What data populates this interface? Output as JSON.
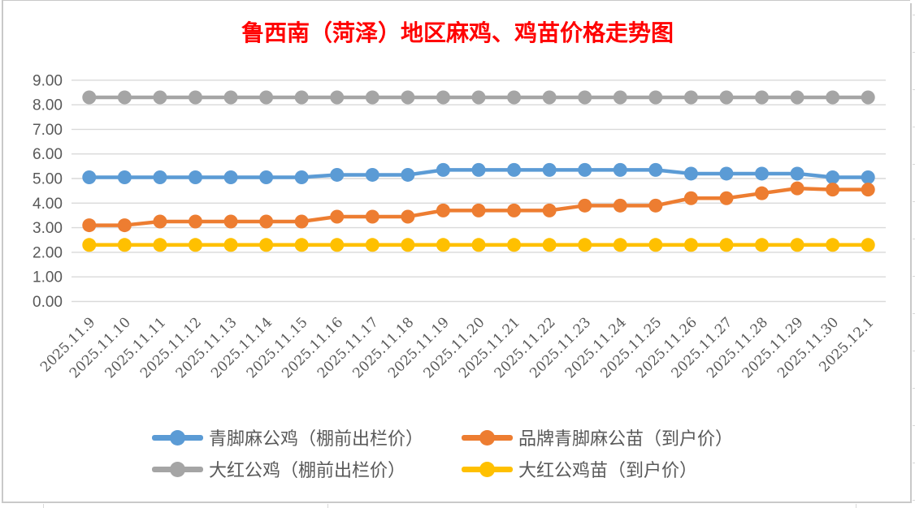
{
  "window": {
    "kind": "spreadsheet-embedded-chart",
    "background": "#FFFFFF"
  },
  "chart_data": {
    "type": "line",
    "title": "鲁西南（菏泽）地区麻鸡、鸡苗价格走势图",
    "title_color": "#FF0000",
    "categories": [
      "2025.11.9",
      "2025.11.10",
      "2025.11.11",
      "2025.11.12",
      "2025.11.13",
      "2025.11.14",
      "2025.11.15",
      "2025.11.16",
      "2025.11.17",
      "2025.11.18",
      "2025.11.19",
      "2025.11.20",
      "2025.11.21",
      "2025.11.22",
      "2025.11.23",
      "2025.11.24",
      "2025.11.25",
      "2025.11.26",
      "2025.11.27",
      "2025.11.28",
      "2025.11.29",
      "2025.11.30",
      "2025.12.1"
    ],
    "series": [
      {
        "name": "青脚麻公鸡（棚前出栏价）",
        "color": "#5B9BD5",
        "values": [
          5.05,
          5.05,
          5.05,
          5.05,
          5.05,
          5.05,
          5.05,
          5.15,
          5.15,
          5.15,
          5.35,
          5.35,
          5.35,
          5.35,
          5.35,
          5.35,
          5.35,
          5.2,
          5.2,
          5.2,
          5.2,
          5.05,
          5.05
        ]
      },
      {
        "name": "品牌青脚麻公苗（到户价）",
        "color": "#ED7D31",
        "values": [
          3.1,
          3.1,
          3.25,
          3.25,
          3.25,
          3.25,
          3.25,
          3.45,
          3.45,
          3.45,
          3.7,
          3.7,
          3.7,
          3.7,
          3.9,
          3.9,
          3.9,
          4.2,
          4.2,
          4.4,
          4.6,
          4.55,
          4.55
        ]
      },
      {
        "name": "大红公鸡（棚前出栏价）",
        "color": "#A5A5A5",
        "values": [
          8.3,
          8.3,
          8.3,
          8.3,
          8.3,
          8.3,
          8.3,
          8.3,
          8.3,
          8.3,
          8.3,
          8.3,
          8.3,
          8.3,
          8.3,
          8.3,
          8.3,
          8.3,
          8.3,
          8.3,
          8.3,
          8.3,
          8.3
        ]
      },
      {
        "name": "大红公鸡苗（到户价）",
        "color": "#FFC000",
        "values": [
          2.3,
          2.3,
          2.3,
          2.3,
          2.3,
          2.3,
          2.3,
          2.3,
          2.3,
          2.3,
          2.3,
          2.3,
          2.3,
          2.3,
          2.3,
          2.3,
          2.3,
          2.3,
          2.3,
          2.3,
          2.3,
          2.3,
          2.3
        ]
      }
    ],
    "y_ticks": [
      "0.00",
      "1.00",
      "2.00",
      "3.00",
      "4.00",
      "5.00",
      "6.00",
      "7.00",
      "8.00",
      "9.00"
    ],
    "ylim": [
      0,
      9
    ],
    "xlabel": "",
    "ylabel": "",
    "x_label_rotation_deg": 45,
    "grid": "horizontal",
    "gridline_color": "#D9D9D9",
    "axis_text_color": "#595959",
    "legend_position": "bottom"
  }
}
